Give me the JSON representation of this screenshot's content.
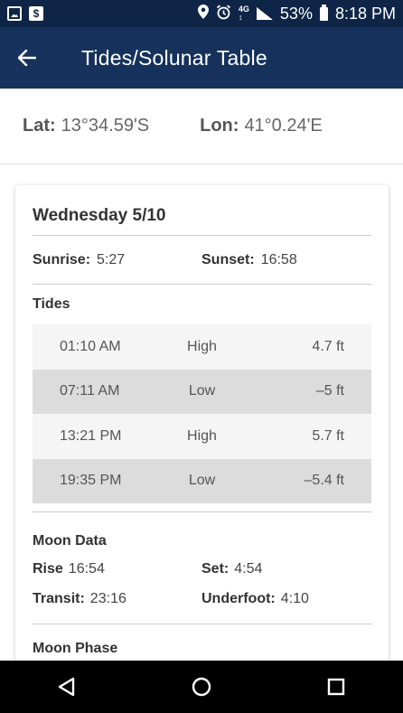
{
  "status_bar": {
    "battery": "53%",
    "time": "8:18 PM"
  },
  "app_bar": {
    "title": "Tides/Solunar Table"
  },
  "location": {
    "lat_label": "Lat:",
    "lat_value": "13°34.59'S",
    "lon_label": "Lon:",
    "lon_value": "41°0.24'E"
  },
  "day": {
    "title": "Wednesday 5/10",
    "sunrise_label": "Sunrise:",
    "sunrise": "5:27",
    "sunset_label": "Sunset:",
    "sunset": "16:58"
  },
  "tides": {
    "title": "Tides",
    "rows": [
      {
        "time": "01:10 AM",
        "type": "High",
        "height": "4.7 ft"
      },
      {
        "time": "07:11 AM",
        "type": "Low",
        "height": "–5 ft"
      },
      {
        "time": "13:21 PM",
        "type": "High",
        "height": "5.7 ft"
      },
      {
        "time": "19:35 PM",
        "type": "Low",
        "height": "–5.4 ft"
      }
    ]
  },
  "moon": {
    "title": "Moon Data",
    "rise_label": "Rise",
    "rise": "16:54",
    "set_label": "Set:",
    "set": "4:54",
    "transit_label": "Transit:",
    "transit": "23:16",
    "underfoot_label": "Underfoot:",
    "underfoot": "4:10"
  },
  "moon_phase": {
    "title": "Moon Phase"
  },
  "icons": {
    "back": "arrow-left-icon",
    "nav_back": "triangle-back-icon",
    "nav_home": "circle-home-icon",
    "nav_recent": "square-recent-icon"
  },
  "colors": {
    "app_bar": "#16325c",
    "status_bar": "#0f2547"
  }
}
